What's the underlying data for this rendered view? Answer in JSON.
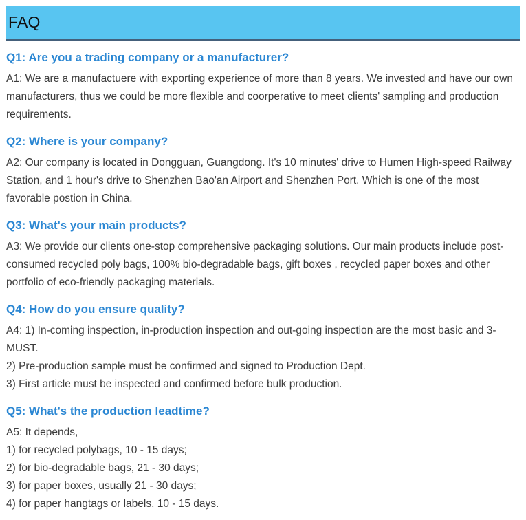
{
  "page": {
    "title": "FAQ"
  },
  "colors": {
    "page_bg": "#ffffff",
    "header_bg": "#58c5f1",
    "header_border": "#44607b",
    "title_text": "#111111",
    "question_color": "#2b87d3",
    "body_text": "#3c3c3c"
  },
  "faq": {
    "items": [
      {
        "question": "Q1: Are you a trading company or a manufacturer?",
        "answer_paragraphs": [
          "A1: We are a manufactuere with exporting experience of more than 8 years. We invested and have our own manufacturers, thus we could be more flexible and coorperative to meet clients' sampling and production requirements."
        ]
      },
      {
        "question": "Q2: Where is your company?",
        "answer_paragraphs": [
          "A2: Our company is located in Dongguan, Guangdong. It's 10 minutes' drive to Humen High-speed Railway Station, and 1 hour's drive to Shenzhen Bao'an Airport and Shenzhen Port. Which is one of the most favorable postion in China."
        ]
      },
      {
        "question": "Q3: What's your main products?",
        "answer_paragraphs": [
          "A3: We provide our clients one-stop comprehensive packaging solutions. Our main products include post-consumed recycled poly bags, 100% bio-degradable bags, gift boxes , recycled paper boxes and other portfolio of eco-friendly packaging materials."
        ]
      },
      {
        "question": "Q4: How do you ensure quality?",
        "answer_paragraphs": [
          "A4: 1) In-coming inspection, in-production inspection and out-going inspection are the most basic and 3-MUST.",
          "2) Pre-production sample must be confirmed and signed to Production Dept.",
          "3) First article must be inspected and confirmed before bulk production."
        ]
      },
      {
        "question": "Q5: What's the production leadtime?",
        "answer_paragraphs": [
          "A5: It depends,",
          "1) for recycled polybags, 10 - 15 days;",
          "2) for bio-degradable bags, 21 - 30 days;",
          "3) for paper boxes, usually 21 - 30 days;",
          "4) for paper hangtags or labels, 10 - 15 days."
        ]
      }
    ]
  }
}
